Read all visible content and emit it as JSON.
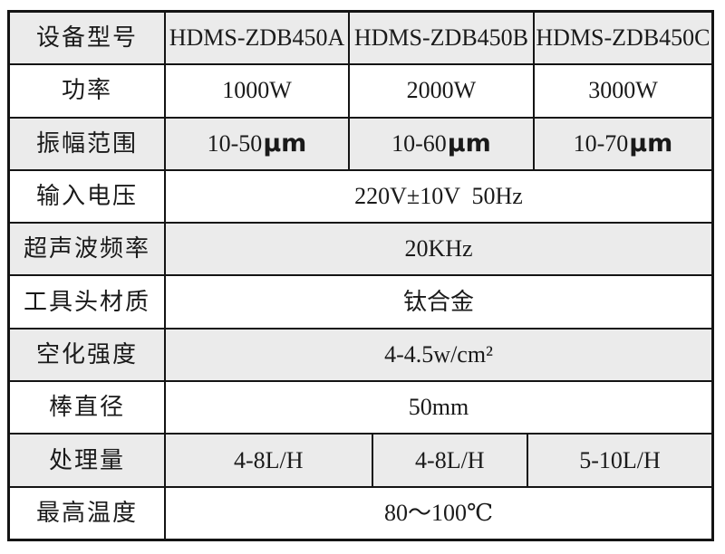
{
  "table": {
    "colors": {
      "alt_row_bg": "#ebebeb",
      "row_bg": "#ffffff",
      "border": "#141414",
      "text": "#1a1a1a"
    },
    "rows": [
      {
        "label": "设备型号",
        "cells": [
          "HDMS-ZDB450A",
          "HDMS-ZDB450B",
          "HDMS-ZDB450C"
        ]
      },
      {
        "label": "功率",
        "cells": [
          "1000W",
          "2000W",
          "3000W"
        ]
      },
      {
        "label": "振幅范围",
        "values": [
          "10-50",
          "10-60",
          "10-70"
        ],
        "unit": "μm"
      },
      {
        "label": "输入电压",
        "value": "220V±10V  50Hz"
      },
      {
        "label": "超声波频率",
        "value": "20KHz"
      },
      {
        "label": "工具头材质",
        "value": "钛合金"
      },
      {
        "label": "空化强度",
        "value": "4-4.5w/cm²"
      },
      {
        "label": "棒直径",
        "value": "50mm"
      },
      {
        "label": "处理量",
        "cells": [
          "4-8L/H",
          "4-8L/H",
          "5-10L/H"
        ]
      },
      {
        "label": "最高温度",
        "value": "80～100℃"
      }
    ]
  }
}
